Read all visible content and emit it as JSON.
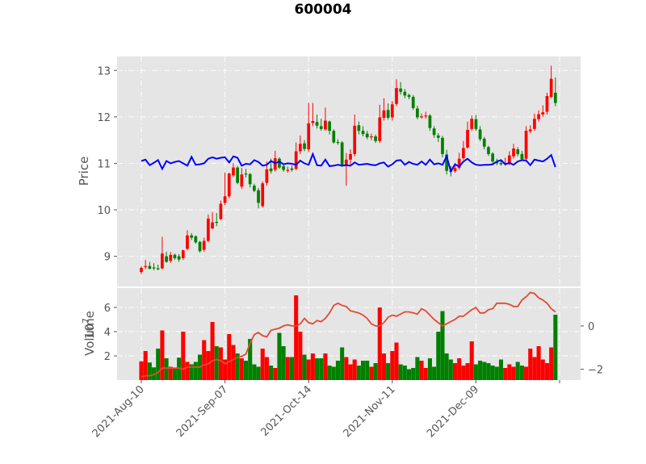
{
  "chart_data": {
    "type": "candlestick",
    "title": "600004",
    "colors": {
      "background": "#e5e5e5",
      "up": "#ff0000",
      "down": "#008000",
      "indicator_line": "#0000ff",
      "volume_line": "#e24a33",
      "tick_text": "#555555"
    },
    "grid": true,
    "x_ticks": [
      "2021-Aug-10",
      "2021-Sep-07",
      "2021-Oct-14",
      "2021-Nov-11",
      "2021-Dec-09"
    ],
    "x_tick_indices": [
      0,
      20,
      40,
      60,
      80
    ],
    "price_panel": {
      "ylabel": "Price",
      "yticks": [
        9,
        10,
        11,
        12,
        13
      ],
      "ylim": [
        8.35,
        13.3
      ]
    },
    "volume_panel": {
      "ylabel": "Volume",
      "scale_label": "10",
      "scale_exponent": "7",
      "yticks": [
        2,
        4,
        6
      ],
      "ylim": [
        0,
        7.6
      ],
      "right_yticks": [
        0,
        -2
      ],
      "right_ylim": [
        -2.5,
        1.75
      ]
    },
    "open": [
      8.66,
      8.77,
      8.79,
      8.76,
      8.74,
      8.74,
      9.0,
      8.9,
      9.03,
      9.0,
      8.96,
      9.16,
      9.45,
      9.43,
      9.31,
      9.14,
      9.33,
      9.6,
      9.74,
      9.8,
      10.15,
      10.29,
      10.74,
      10.91,
      10.5,
      10.78,
      10.77,
      10.52,
      10.42,
      10.08,
      10.58,
      10.89,
      10.86,
      11.1,
      10.94,
      10.85,
      10.89,
      10.88,
      11.26,
      11.43,
      11.3,
      11.87,
      11.89,
      11.8,
      11.73,
      11.9,
      11.7,
      11.46,
      11.45,
      10.95,
      11.08,
      11.2,
      11.82,
      11.7,
      11.64,
      11.56,
      11.58,
      11.48,
      11.98,
      12.15,
      11.99,
      12.28,
      12.61,
      12.54,
      12.47,
      12.43,
      12.18,
      12.0,
      12.02,
      12.03,
      11.75,
      11.6,
      11.55,
      11.19,
      10.84,
      10.83,
      10.9,
      11.11,
      11.34,
      11.74,
      11.95,
      11.73,
      11.53,
      11.35,
      11.21,
      11.04,
      11.01,
      10.99,
      11.0,
      11.15,
      11.3,
      11.2,
      11.1,
      11.69,
      11.74,
      11.95,
      12.05,
      12.11,
      12.43,
      12.52
    ],
    "close": [
      8.75,
      8.79,
      8.73,
      8.74,
      8.73,
      9.06,
      8.88,
      9.03,
      8.96,
      8.93,
      9.13,
      9.45,
      9.4,
      9.3,
      9.11,
      9.33,
      9.81,
      9.73,
      9.72,
      10.13,
      10.29,
      10.78,
      10.91,
      10.58,
      10.76,
      10.76,
      10.55,
      10.41,
      10.15,
      10.57,
      10.87,
      10.83,
      11.11,
      10.91,
      10.86,
      10.86,
      10.86,
      11.26,
      11.42,
      11.31,
      11.86,
      11.91,
      11.81,
      11.74,
      11.92,
      11.7,
      11.45,
      11.44,
      10.95,
      11.08,
      11.2,
      11.81,
      11.7,
      11.63,
      11.56,
      11.58,
      11.48,
      11.99,
      12.14,
      11.98,
      12.27,
      12.62,
      12.54,
      12.46,
      12.43,
      12.19,
      11.99,
      12.01,
      12.03,
      11.76,
      11.61,
      11.55,
      11.2,
      10.84,
      10.82,
      10.9,
      11.1,
      11.33,
      11.72,
      11.96,
      11.74,
      11.52,
      11.36,
      11.2,
      11.04,
      11.0,
      10.98,
      11.01,
      11.17,
      11.32,
      11.2,
      11.09,
      11.7,
      11.73,
      11.96,
      12.06,
      12.1,
      12.45,
      12.82,
      12.3
    ],
    "high": [
      8.78,
      8.92,
      8.88,
      8.85,
      8.82,
      9.42,
      9.1,
      9.09,
      9.06,
      9.05,
      9.14,
      9.56,
      9.5,
      9.45,
      9.33,
      9.4,
      9.9,
      9.95,
      9.93,
      10.2,
      10.8,
      10.8,
      11.0,
      10.94,
      10.9,
      10.88,
      10.79,
      10.56,
      10.47,
      10.61,
      11.04,
      11.1,
      11.27,
      11.13,
      10.98,
      10.93,
      10.95,
      11.45,
      11.6,
      11.5,
      12.3,
      12.3,
      12.05,
      11.96,
      12.2,
      11.92,
      11.73,
      11.52,
      11.48,
      11.22,
      11.3,
      12.05,
      11.9,
      11.8,
      11.7,
      11.64,
      11.62,
      12.26,
      12.4,
      12.29,
      12.34,
      12.81,
      12.75,
      12.6,
      12.5,
      12.47,
      12.24,
      12.07,
      12.11,
      12.06,
      11.8,
      11.65,
      11.59,
      11.29,
      10.94,
      11.01,
      11.23,
      11.48,
      11.9,
      12.03,
      12.04,
      11.8,
      11.57,
      11.38,
      11.24,
      11.1,
      11.07,
      11.12,
      11.26,
      11.42,
      11.35,
      11.27,
      11.8,
      11.82,
      12.07,
      12.14,
      12.25,
      12.52,
      13.1,
      12.85
    ],
    "low": [
      8.62,
      8.72,
      8.72,
      8.7,
      8.7,
      8.72,
      8.86,
      8.86,
      8.92,
      8.88,
      8.92,
      9.13,
      9.35,
      9.27,
      9.08,
      9.1,
      9.3,
      9.58,
      9.65,
      9.78,
      10.1,
      10.25,
      10.7,
      10.55,
      10.45,
      10.7,
      10.48,
      10.38,
      10.03,
      10.05,
      10.52,
      10.78,
      10.82,
      10.88,
      10.82,
      10.8,
      10.82,
      10.85,
      11.2,
      11.26,
      11.24,
      11.8,
      11.75,
      11.7,
      11.7,
      11.62,
      11.42,
      11.4,
      10.92,
      10.52,
      10.98,
      11.15,
      11.62,
      11.58,
      11.52,
      11.5,
      11.44,
      11.44,
      11.92,
      11.94,
      11.92,
      12.23,
      12.48,
      12.4,
      12.38,
      12.15,
      11.95,
      11.96,
      11.96,
      11.7,
      11.55,
      11.46,
      11.13,
      10.76,
      10.72,
      10.8,
      10.86,
      11.08,
      11.32,
      11.7,
      11.7,
      11.48,
      11.3,
      11.16,
      11.0,
      10.96,
      10.95,
      10.95,
      10.96,
      11.1,
      11.15,
      11.05,
      11.06,
      11.65,
      11.7,
      11.9,
      12.0,
      12.05,
      12.4,
      12.23
    ],
    "indicator": [
      11.05,
      11.08,
      10.96,
      11.01,
      11.07,
      10.88,
      11.05,
      11.0,
      11.03,
      11.05,
      11.0,
      10.95,
      11.14,
      10.97,
      10.98,
      11.0,
      11.1,
      11.13,
      11.1,
      11.12,
      11.13,
      11.02,
      11.15,
      11.12,
      10.95,
      10.99,
      10.98,
      11.07,
      11.03,
      10.95,
      10.97,
      11.05,
      11.0,
      11.04,
      10.98,
      11.0,
      10.99,
      10.97,
      11.06,
      11.0,
      10.97,
      11.2,
      10.96,
      10.95,
      11.08,
      10.94,
      10.95,
      10.97,
      10.95,
      10.96,
      10.95,
      11.02,
      10.97,
      10.98,
      10.99,
      10.97,
      10.96,
      11.0,
      11.02,
      10.93,
      10.98,
      11.06,
      11.07,
      10.97,
      11.03,
      10.99,
      10.97,
      11.04,
      10.97,
      11.08,
      10.98,
      11.0,
      10.97,
      11.15,
      10.83,
      10.98,
      10.93,
      11.04,
      11.1,
      11.02,
      10.97,
      10.96,
      10.97,
      10.97,
      10.98,
      11.04,
      11.07,
      10.98,
      11.01,
      10.97,
      11.04,
      11.07,
      11.06,
      10.96,
      11.08,
      11.06,
      11.04,
      11.1,
      11.18,
      10.92
    ],
    "volume": [
      1.55,
      2.4,
      1.45,
      1.05,
      2.6,
      4.1,
      1.8,
      1.1,
      1.0,
      1.85,
      4.0,
      1.5,
      1.3,
      1.5,
      2.1,
      3.3,
      2.4,
      4.8,
      2.8,
      2.7,
      1.7,
      3.8,
      2.9,
      2.2,
      1.8,
      1.6,
      3.4,
      1.3,
      1.1,
      2.6,
      1.9,
      1.2,
      1.0,
      3.9,
      2.8,
      1.9,
      1.9,
      7.0,
      4.0,
      2.1,
      1.7,
      2.2,
      1.8,
      1.8,
      2.2,
      1.2,
      1.1,
      1.6,
      2.7,
      1.9,
      1.3,
      1.7,
      1.2,
      1.6,
      1.6,
      1.1,
      1.4,
      6.0,
      2.2,
      1.4,
      2.4,
      3.1,
      1.3,
      1.2,
      0.9,
      1.0,
      1.9,
      1.6,
      1.0,
      1.8,
      1.1,
      4.0,
      5.7,
      2.2,
      1.7,
      1.4,
      1.8,
      1.2,
      1.4,
      3.2,
      1.3,
      1.6,
      1.5,
      1.4,
      1.2,
      1.1,
      1.7,
      1.0,
      1.3,
      1.1,
      1.5,
      1.2,
      1.1,
      2.6,
      1.9,
      2.8,
      1.7,
      1.4,
      2.7,
      5.4
    ],
    "volume_line": [
      -2.35,
      -2.3,
      -2.3,
      -2.25,
      -2.15,
      -1.95,
      -1.95,
      -1.95,
      -1.95,
      -1.95,
      -2.0,
      -1.9,
      -1.9,
      -1.9,
      -1.9,
      -1.8,
      -1.75,
      -1.6,
      -1.55,
      -1.6,
      -1.75,
      -1.65,
      -1.55,
      -1.45,
      -1.4,
      -1.3,
      -0.8,
      -0.4,
      -0.3,
      -0.45,
      -0.5,
      -0.2,
      -0.15,
      -0.1,
      0.0,
      0.05,
      0.0,
      0.0,
      0.1,
      0.35,
      0.15,
      0.1,
      0.25,
      0.2,
      0.35,
      0.6,
      0.95,
      1.05,
      0.95,
      0.9,
      0.7,
      0.65,
      0.6,
      0.5,
      0.35,
      0.1,
      0.0,
      0.0,
      0.15,
      0.4,
      0.5,
      0.45,
      0.55,
      0.65,
      0.65,
      0.6,
      0.55,
      0.8,
      0.7,
      0.5,
      0.3,
      0.15,
      0.0,
      0.1,
      0.2,
      0.3,
      0.45,
      0.45,
      0.6,
      0.75,
      0.85,
      0.6,
      0.6,
      0.75,
      0.8,
      1.05,
      1.05,
      1.05,
      1.0,
      0.9,
      0.9,
      1.2,
      1.35,
      1.55,
      1.5,
      1.3,
      1.2,
      1.05,
      0.8,
      0.65
    ]
  }
}
